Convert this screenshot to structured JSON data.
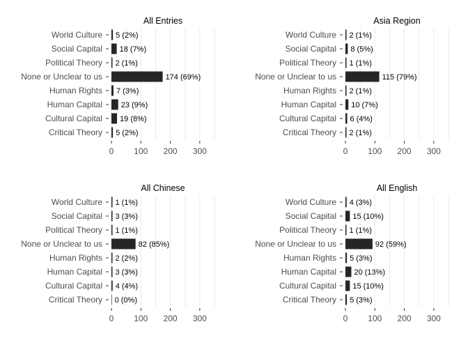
{
  "chart_data": [
    {
      "type": "bar",
      "orientation": "horizontal",
      "title": "All Entries",
      "categories": [
        "World Culture",
        "Social Capital",
        "Political Theory",
        "None or Unclear to us",
        "Human Rights",
        "Human Capital",
        "Cultural Capital",
        "Critical Theory"
      ],
      "values": [
        5,
        18,
        2,
        174,
        7,
        23,
        19,
        5
      ],
      "labels": [
        "5 (2%)",
        "18 (7%)",
        "2 (1%)",
        "174 (69%)",
        "7 (3%)",
        "23 (9%)",
        "19 (8%)",
        "5 (2%)"
      ],
      "xlim": [
        0,
        350
      ],
      "xticks": [
        0,
        100,
        200,
        300
      ],
      "bar_color": "#262626"
    },
    {
      "type": "bar",
      "orientation": "horizontal",
      "title": "Asia Region",
      "categories": [
        "World Culture",
        "Social Capital",
        "Political Theory",
        "None or Unclear to us",
        "Human Rights",
        "Human Capital",
        "Cultural Capital",
        "Critical Theory"
      ],
      "values": [
        2,
        8,
        1,
        115,
        2,
        10,
        6,
        2
      ],
      "labels": [
        "2 (1%)",
        "8 (5%)",
        "1 (1%)",
        "115 (79%)",
        "2 (1%)",
        "10 (7%)",
        "6 (4%)",
        "2 (1%)"
      ],
      "xlim": [
        0,
        350
      ],
      "xticks": [
        0,
        100,
        200,
        300
      ],
      "bar_color": "#262626"
    },
    {
      "type": "bar",
      "orientation": "horizontal",
      "title": "All Chinese",
      "categories": [
        "World Culture",
        "Social Capital",
        "Political Theory",
        "None or Unclear to us",
        "Human Rights",
        "Human Capital",
        "Cultural Capital",
        "Critical Theory"
      ],
      "values": [
        1,
        3,
        1,
        82,
        2,
        3,
        4,
        0
      ],
      "labels": [
        "1 (1%)",
        "3 (3%)",
        "1 (1%)",
        "82 (85%)",
        "2 (2%)",
        "3 (3%)",
        "4 (4%)",
        "0 (0%)"
      ],
      "xlim": [
        0,
        350
      ],
      "xticks": [
        0,
        100,
        200,
        300
      ],
      "bar_color": "#262626"
    },
    {
      "type": "bar",
      "orientation": "horizontal",
      "title": "All English",
      "categories": [
        "World Culture",
        "Social Capital",
        "Political Theory",
        "None or Unclear to us",
        "Human Rights",
        "Human Capital",
        "Cultural Capital",
        "Critical Theory"
      ],
      "values": [
        4,
        15,
        1,
        92,
        5,
        20,
        15,
        5
      ],
      "labels": [
        "4 (3%)",
        "15 (10%)",
        "1 (1%)",
        "92 (59%)",
        "5 (3%)",
        "20 (13%)",
        "15 (10%)",
        "5 (3%)"
      ],
      "xlim": [
        0,
        350
      ],
      "xticks": [
        0,
        100,
        200,
        300
      ],
      "bar_color": "#262626"
    }
  ]
}
